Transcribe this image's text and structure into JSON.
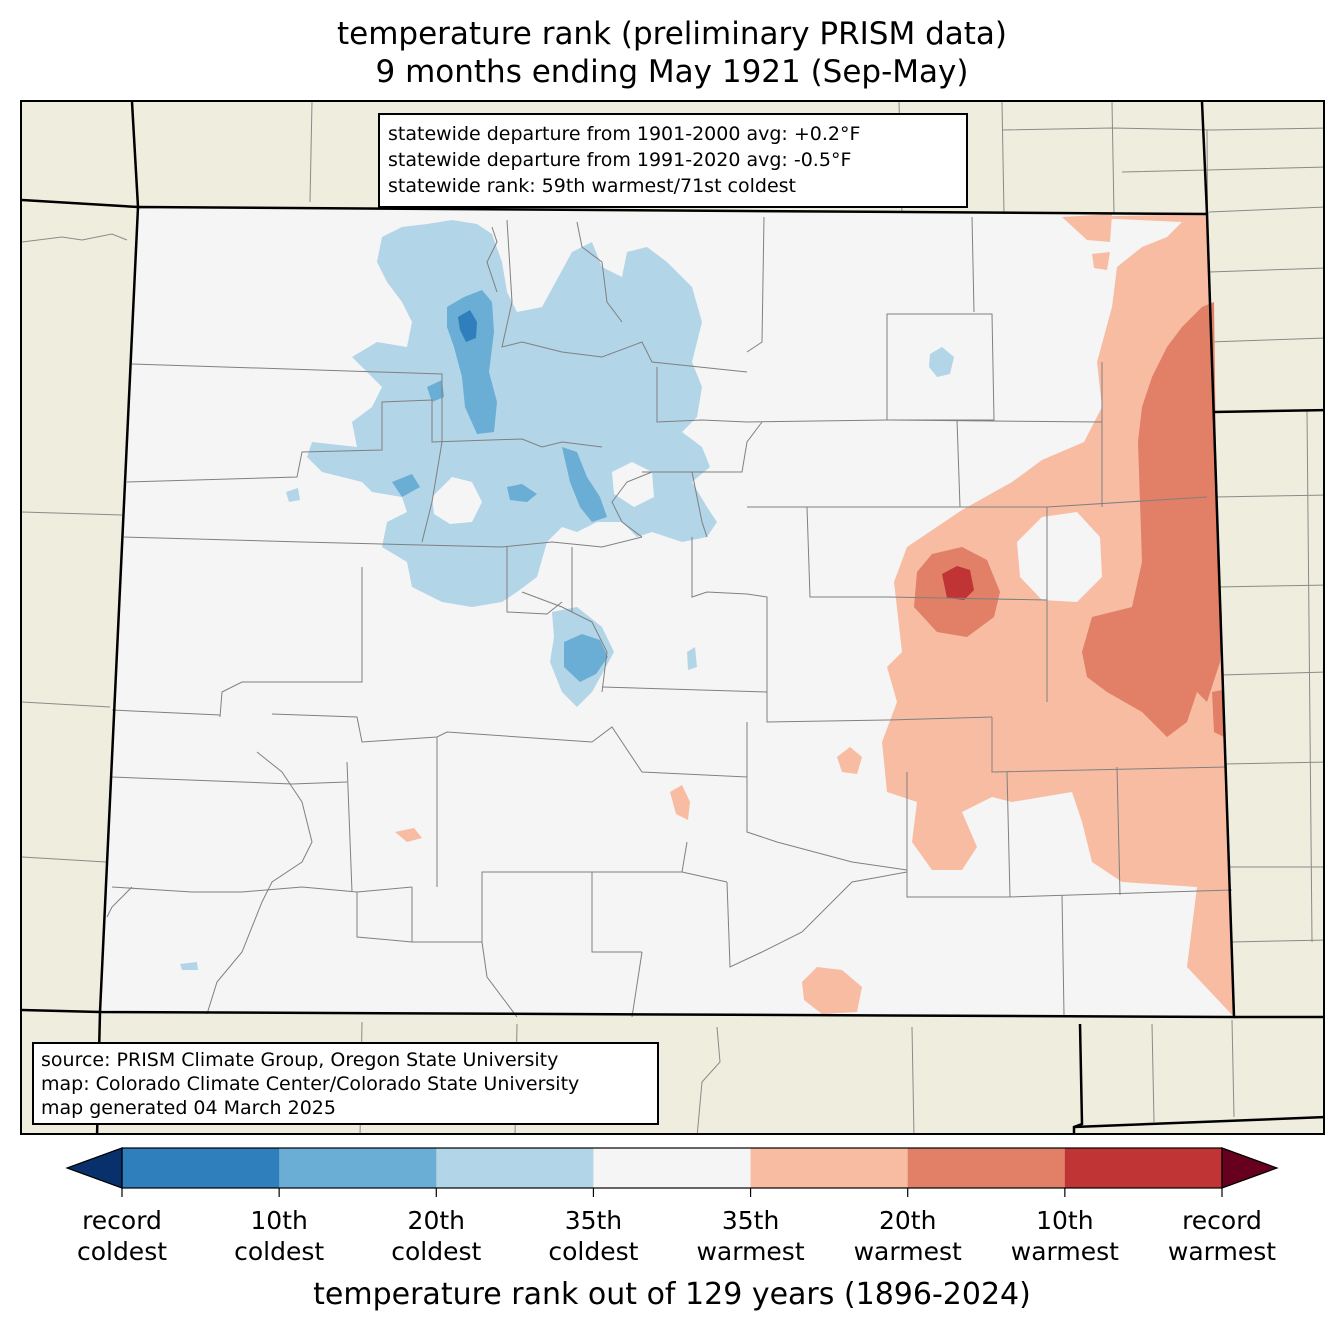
{
  "title": {
    "line1": "temperature rank (preliminary PRISM data)",
    "line2": "9 months ending May 1921 (Sep-May)"
  },
  "stats": {
    "line1": "statewide departure from 1901-2000 avg: +0.2°F",
    "line2": "statewide departure from 1991-2020 avg: -0.5°F",
    "line3": "statewide rank: 59th warmest/71st coldest"
  },
  "source": {
    "line1": "source: PRISM Climate Group, Oregon State University",
    "line2": "map: Colorado Climate Center/Colorado State University",
    "line3": "map generated 04 March 2025"
  },
  "colorbar": {
    "title": "temperature rank out of 129 years (1896-2024)",
    "labels": [
      {
        "top": "record",
        "bottom": "coldest"
      },
      {
        "top": "10th",
        "bottom": "coldest"
      },
      {
        "top": "20th",
        "bottom": "coldest"
      },
      {
        "top": "35th",
        "bottom": "coldest"
      },
      {
        "top": "35th",
        "bottom": "warmest"
      },
      {
        "top": "20th",
        "bottom": "warmest"
      },
      {
        "top": "10th",
        "bottom": "warmest"
      },
      {
        "top": "record",
        "bottom": "warmest"
      }
    ],
    "colors": [
      "#08306b",
      "#2f7fbc",
      "#6aadd5",
      "#b2d5e8",
      "#f5f5f5",
      "#f8bca3",
      "#e17f67",
      "#c03436",
      "#67001f"
    ]
  },
  "map_colors": {
    "land_outside": "#efedde",
    "state_fill": "#f5f5f5",
    "county_lines": "#808080",
    "state_lines": "#000000"
  }
}
